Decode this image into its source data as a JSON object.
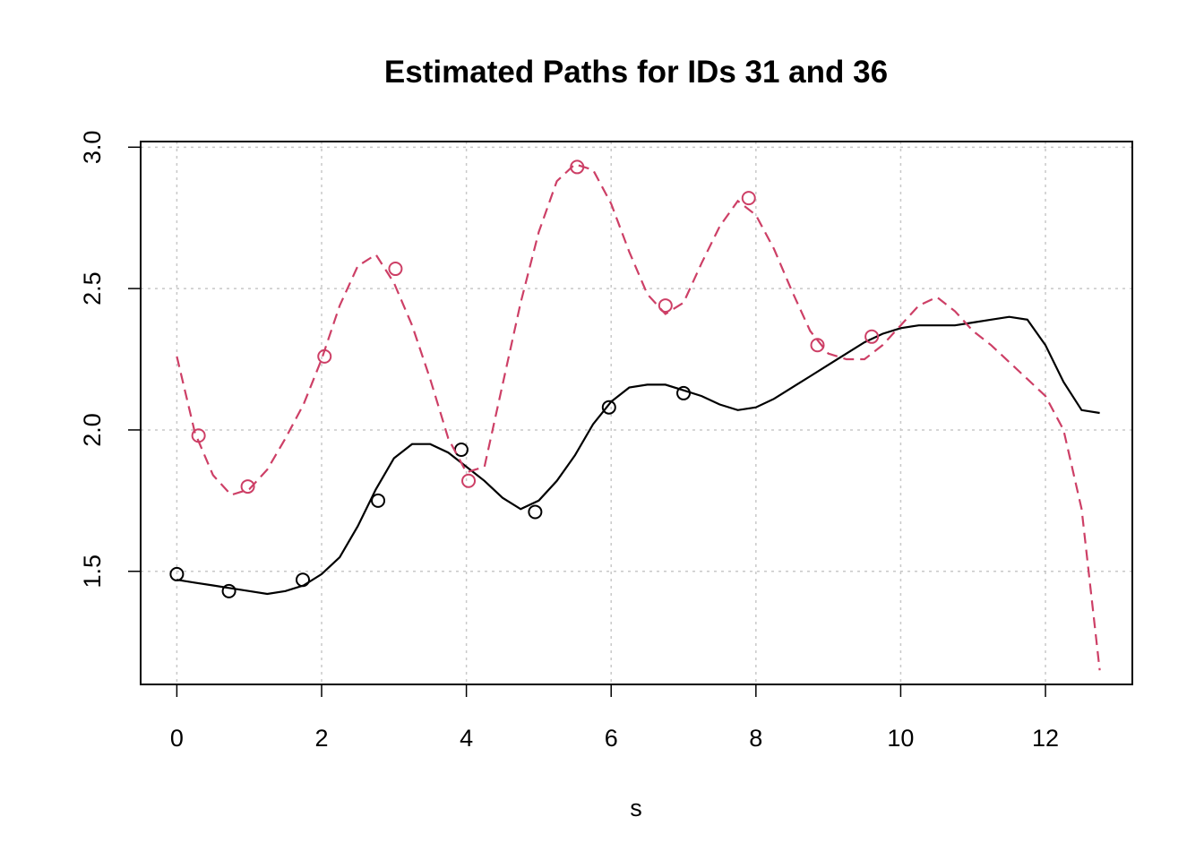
{
  "chart_data": {
    "type": "line",
    "title": "Estimated Paths for IDs 31 and 36",
    "xlabel": "s",
    "ylabel": "",
    "xlim": [
      -0.5,
      13.2
    ],
    "ylim": [
      1.1,
      3.02
    ],
    "xticks": [
      0,
      2,
      4,
      6,
      8,
      10,
      12
    ],
    "yticks": [
      1.5,
      2.0,
      2.5,
      3.0
    ],
    "xtick_labels": [
      "0",
      "2",
      "4",
      "6",
      "8",
      "10",
      "12"
    ],
    "ytick_labels": [
      "1.5",
      "2.0",
      "2.5",
      "3.0"
    ],
    "grid": true,
    "legend": "none",
    "series": [
      {
        "color": "#000000",
        "style": "solid",
        "line": {
          "x": [
            0.0,
            0.25,
            0.5,
            0.75,
            1.0,
            1.25,
            1.5,
            1.75,
            2.0,
            2.25,
            2.5,
            2.75,
            3.0,
            3.25,
            3.5,
            3.75,
            4.0,
            4.25,
            4.5,
            4.75,
            5.0,
            5.25,
            5.5,
            5.75,
            6.0,
            6.25,
            6.5,
            6.75,
            7.0,
            7.25,
            7.5,
            7.75,
            8.0,
            8.25,
            8.5,
            8.75,
            9.0,
            9.25,
            9.5,
            9.75,
            10.0,
            10.25,
            10.5,
            10.75,
            11.0,
            11.25,
            11.5,
            11.75,
            12.0,
            12.25,
            12.5,
            12.75
          ],
          "y": [
            1.47,
            1.46,
            1.45,
            1.44,
            1.43,
            1.42,
            1.43,
            1.45,
            1.49,
            1.55,
            1.66,
            1.79,
            1.9,
            1.95,
            1.95,
            1.92,
            1.87,
            1.82,
            1.76,
            1.72,
            1.75,
            1.82,
            1.91,
            2.02,
            2.1,
            2.15,
            2.16,
            2.16,
            2.14,
            2.12,
            2.09,
            2.07,
            2.08,
            2.11,
            2.15,
            2.19,
            2.23,
            2.27,
            2.31,
            2.34,
            2.36,
            2.37,
            2.37,
            2.37,
            2.38,
            2.39,
            2.4,
            2.39,
            2.3,
            2.17,
            2.07,
            2.06
          ]
        },
        "points": {
          "x": [
            0.0,
            0.72,
            1.74,
            2.78,
            3.93,
            4.95,
            5.97,
            7.0
          ],
          "y": [
            1.49,
            1.43,
            1.47,
            1.75,
            1.93,
            1.71,
            2.08,
            2.13
          ]
        }
      },
      {
        "color": "#cd3f66",
        "style": "dashed",
        "line": {
          "x": [
            0.0,
            0.25,
            0.5,
            0.75,
            1.0,
            1.25,
            1.5,
            1.75,
            2.0,
            2.25,
            2.5,
            2.75,
            3.0,
            3.25,
            3.5,
            3.75,
            4.0,
            4.25,
            4.5,
            4.75,
            5.0,
            5.25,
            5.5,
            5.75,
            6.0,
            6.25,
            6.5,
            6.75,
            7.0,
            7.25,
            7.5,
            7.75,
            8.0,
            8.25,
            8.5,
            8.75,
            9.0,
            9.25,
            9.5,
            9.75,
            10.0,
            10.25,
            10.5,
            10.75,
            11.0,
            11.25,
            11.5,
            11.75,
            12.0,
            12.25,
            12.5,
            12.75
          ],
          "y": [
            2.26,
            1.99,
            1.84,
            1.77,
            1.79,
            1.86,
            1.97,
            2.09,
            2.25,
            2.44,
            2.58,
            2.62,
            2.52,
            2.37,
            2.18,
            1.97,
            1.85,
            1.87,
            2.16,
            2.45,
            2.7,
            2.88,
            2.94,
            2.92,
            2.8,
            2.63,
            2.48,
            2.41,
            2.45,
            2.59,
            2.72,
            2.81,
            2.76,
            2.64,
            2.49,
            2.35,
            2.27,
            2.25,
            2.25,
            2.3,
            2.37,
            2.44,
            2.47,
            2.42,
            2.35,
            2.3,
            2.24,
            2.18,
            2.12,
            2.0,
            1.72,
            1.15
          ]
        },
        "points": {
          "x": [
            0.3,
            0.98,
            2.04,
            3.02,
            4.03,
            5.53,
            6.75,
            7.9,
            8.85,
            9.6
          ],
          "y": [
            1.98,
            1.8,
            2.26,
            2.57,
            1.82,
            2.93,
            2.44,
            2.82,
            2.3,
            2.33
          ]
        }
      }
    ]
  }
}
